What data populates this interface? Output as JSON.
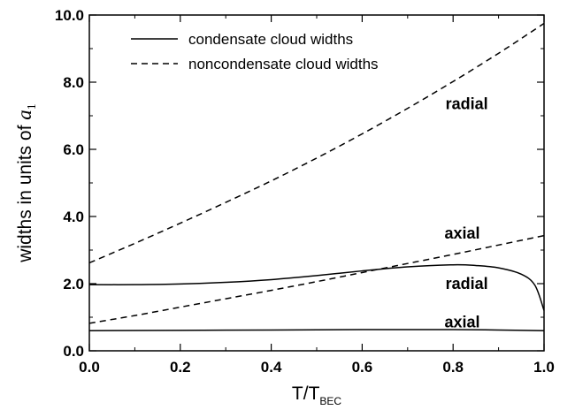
{
  "chart_data": {
    "type": "line",
    "xlabel_main": "T/T",
    "xlabel_sub": "BEC",
    "ylabel_main": "widths in units of ",
    "ylabel_sym": "a",
    "ylabel_sub": "1",
    "xlim": [
      0.0,
      1.0
    ],
    "ylim": [
      0.0,
      10.0
    ],
    "xticks": [
      "0.0",
      "0.2",
      "0.4",
      "0.6",
      "0.8",
      "1.0"
    ],
    "yticks": [
      "0.0",
      "2.0",
      "4.0",
      "6.0",
      "8.0",
      "10.0"
    ],
    "legend": {
      "placement": "top-left",
      "entries": [
        {
          "label": "condensate cloud widths",
          "dash": "solid"
        },
        {
          "label": "noncondensate cloud widths",
          "dash": "dashed"
        }
      ]
    },
    "annotations": [
      {
        "text": "radial",
        "x": 0.83,
        "y": 7.35
      },
      {
        "text": "axial",
        "x": 0.82,
        "y": 3.5
      },
      {
        "text": "radial",
        "x": 0.83,
        "y": 2.0
      },
      {
        "text": "axial",
        "x": 0.82,
        "y": 0.85
      }
    ],
    "series": [
      {
        "dash": "solid",
        "x": [
          0.0,
          0.1,
          0.2,
          0.3,
          0.4,
          0.5,
          0.6,
          0.7,
          0.8,
          0.85,
          0.9,
          0.95,
          0.98,
          1.0
        ],
        "y": [
          1.97,
          1.97,
          1.99,
          2.04,
          2.12,
          2.24,
          2.38,
          2.5,
          2.56,
          2.54,
          2.47,
          2.28,
          1.95,
          1.2
        ]
      },
      {
        "dash": "solid",
        "x": [
          0.0,
          0.2,
          0.4,
          0.6,
          0.8,
          0.9,
          1.0
        ],
        "y": [
          0.6,
          0.61,
          0.62,
          0.63,
          0.63,
          0.62,
          0.6
        ]
      },
      {
        "dash": "dashed",
        "x": [
          0.0,
          0.1,
          0.2,
          0.3,
          0.4,
          0.5,
          0.6,
          0.7,
          0.8,
          0.9,
          1.0
        ],
        "y": [
          2.62,
          3.2,
          3.8,
          4.42,
          5.06,
          5.74,
          6.46,
          7.22,
          8.02,
          8.86,
          9.75
        ]
      },
      {
        "dash": "dashed",
        "x": [
          0.0,
          0.1,
          0.2,
          0.3,
          0.4,
          0.5,
          0.6,
          0.7,
          0.8,
          0.9,
          1.0
        ],
        "y": [
          0.82,
          1.05,
          1.3,
          1.55,
          1.8,
          2.06,
          2.33,
          2.6,
          2.87,
          3.15,
          3.43
        ]
      }
    ]
  }
}
